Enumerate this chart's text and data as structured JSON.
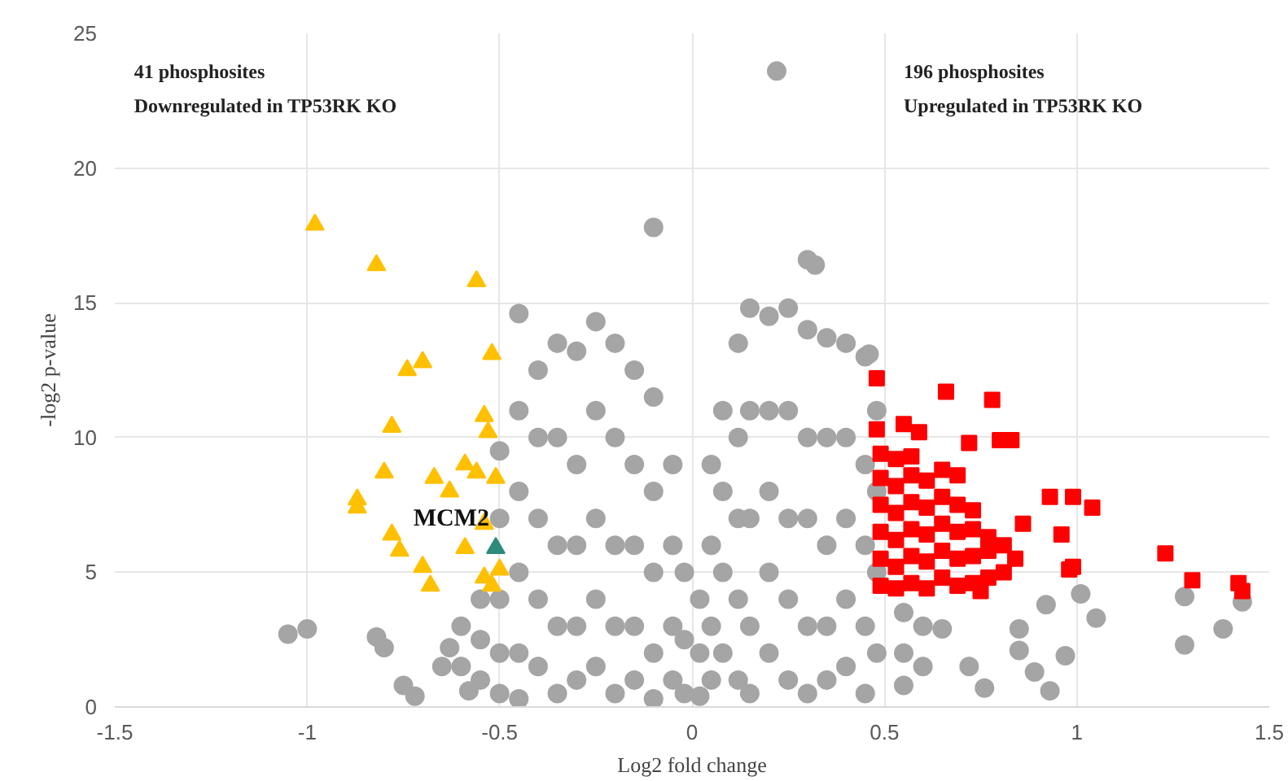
{
  "chart_data": {
    "type": "scatter",
    "xlabel": "Log2 fold change",
    "ylabel": "-log2 p-value",
    "xlim": [
      -1.5,
      1.5
    ],
    "ylim": [
      0,
      25
    ],
    "xticks": [
      -1.5,
      -1,
      -0.5,
      0,
      0.5,
      1,
      1.5
    ],
    "yticks": [
      0,
      5,
      10,
      15,
      20,
      25
    ],
    "grid": true,
    "annotations": [
      "41 phosphosites\nDownregulated  in TP53RK KO",
      "196 phosphosites\nUpregulated  in TP53RK KO",
      {
        "text": "MCM2",
        "x": -0.51,
        "y": 5.9
      }
    ],
    "series": [
      {
        "color": "#a5a5a5",
        "marker": "circle",
        "x": [
          -0.5,
          -0.5,
          -0.5,
          -0.5,
          -0.5,
          -0.45,
          -0.45,
          -0.45,
          -0.45,
          -0.45,
          -0.45,
          -0.4,
          -0.4,
          -0.4,
          -0.4,
          -0.4,
          -0.35,
          -0.35,
          -0.35,
          -0.35,
          -0.35,
          -0.3,
          -0.3,
          -0.3,
          -0.3,
          -0.3,
          -0.25,
          -0.25,
          -0.25,
          -0.25,
          -0.25,
          -0.2,
          -0.2,
          -0.2,
          -0.2,
          -0.2,
          -0.15,
          -0.15,
          -0.15,
          -0.15,
          -0.15,
          -0.1,
          -0.1,
          -0.1,
          -0.1,
          -0.1,
          -0.05,
          -0.05,
          -0.05,
          -0.05,
          -0.02,
          -0.02,
          -0.02,
          0.02,
          0.02,
          0.02,
          0.05,
          0.05,
          0.05,
          0.05,
          0.08,
          0.08,
          0.08,
          0.08,
          0.12,
          0.12,
          0.12,
          0.12,
          0.12,
          0.15,
          0.15,
          0.15,
          0.15,
          0.15,
          0.2,
          0.2,
          0.2,
          0.2,
          0.2,
          0.25,
          0.25,
          0.25,
          0.25,
          0.25,
          0.3,
          0.3,
          0.3,
          0.3,
          0.3,
          0.35,
          0.35,
          0.35,
          0.35,
          0.35,
          0.4,
          0.4,
          0.4,
          0.4,
          0.4,
          0.45,
          0.45,
          0.45,
          0.45,
          0.45,
          0.48,
          0.48,
          0.48,
          0.48,
          -0.1,
          0.22,
          0.3,
          0.32,
          -1.05,
          -1.0,
          -0.82,
          -0.8,
          -0.75,
          -0.72,
          -0.65,
          -0.63,
          -0.58,
          -0.55,
          -0.55,
          -0.55,
          -0.6,
          -0.6,
          0.46,
          0.55,
          0.55,
          0.55,
          0.6,
          0.6,
          0.65,
          0.92,
          1.05,
          1.28,
          1.38,
          1.28,
          1.43,
          0.97,
          0.89,
          0.93,
          0.76,
          0.72,
          0.85,
          0.85,
          1.01
        ],
        "values": [
          9.5,
          7,
          4,
          2,
          0.5,
          14.6,
          11,
          8,
          5,
          2,
          0.3,
          12.5,
          10,
          7,
          4,
          1.5,
          13.5,
          10,
          6,
          3,
          0.5,
          13.2,
          9,
          6,
          3,
          1,
          14.3,
          11,
          7,
          4,
          1.5,
          13.5,
          10,
          6,
          3,
          0.5,
          12.5,
          9,
          6,
          3,
          1,
          11.5,
          8,
          5,
          2,
          0.3,
          9,
          6,
          3,
          1,
          5,
          2.5,
          0.5,
          4,
          2,
          0.4,
          9,
          6,
          3,
          1,
          11,
          8,
          5,
          2,
          13.5,
          10,
          7,
          4,
          1,
          14.8,
          11,
          7,
          3,
          0.5,
          14.5,
          11,
          8,
          5,
          2,
          14.8,
          11,
          7,
          4,
          1,
          14,
          10,
          7,
          3,
          0.5,
          13.7,
          10,
          6,
          3,
          1,
          13.5,
          10,
          7,
          4,
          1.5,
          13,
          9,
          6,
          3,
          0.5,
          11,
          8,
          5,
          2,
          17.8,
          23.6,
          16.6,
          16.4,
          2.7,
          2.9,
          2.6,
          2.2,
          0.8,
          0.4,
          1.5,
          2.2,
          0.6,
          4,
          2.5,
          1,
          3,
          1.5,
          13.1,
          3.5,
          2,
          0.8,
          3,
          1.5,
          2.9,
          3.8,
          3.3,
          4.1,
          2.9,
          2.3,
          3.9,
          1.9,
          1.3,
          0.6,
          0.7,
          1.5,
          2.1,
          2.9,
          4.2
        ]
      },
      {
        "color": "#ffc000",
        "marker": "triangle",
        "x": [
          -0.98,
          -0.82,
          -0.56,
          -0.74,
          -0.7,
          -0.52,
          -0.78,
          -0.54,
          -0.53,
          -0.8,
          -0.67,
          -0.63,
          -0.59,
          -0.56,
          -0.51,
          -0.87,
          -0.87,
          -0.78,
          -0.76,
          -0.59,
          -0.7,
          -0.68,
          -0.54,
          -0.5,
          -0.52,
          -0.54
        ],
        "values": [
          17.9,
          16.4,
          15.8,
          12.5,
          12.8,
          13.1,
          10.4,
          10.8,
          10.2,
          8.7,
          8.5,
          8.0,
          9.0,
          8.7,
          8.5,
          7.7,
          7.4,
          6.4,
          5.8,
          5.9,
          5.2,
          4.5,
          4.8,
          5.1,
          4.5,
          6.8
        ]
      },
      {
        "color": "#2e8b7a",
        "marker": "triangle",
        "x": [
          -0.51
        ],
        "values": [
          5.9
        ]
      },
      {
        "color": "#ff0000",
        "marker": "square",
        "x": [
          0.48,
          0.66,
          0.78,
          0.48,
          0.55,
          0.59,
          0.72,
          0.8,
          0.83,
          0.93,
          0.99,
          1.04,
          0.96,
          0.86,
          0.98,
          0.99,
          1.23,
          1.3,
          1.42,
          1.43,
          0.75,
          0.49,
          0.49,
          0.49,
          0.49,
          0.49,
          0.49,
          0.53,
          0.53,
          0.53,
          0.53,
          0.53,
          0.53,
          0.57,
          0.57,
          0.57,
          0.57,
          0.57,
          0.57,
          0.61,
          0.61,
          0.61,
          0.61,
          0.61,
          0.65,
          0.65,
          0.65,
          0.65,
          0.65,
          0.69,
          0.69,
          0.69,
          0.69,
          0.69,
          0.73,
          0.73,
          0.73,
          0.73,
          0.77,
          0.77,
          0.77,
          0.81,
          0.81,
          0.84
        ],
        "values": [
          12.2,
          11.7,
          11.4,
          10.3,
          10.5,
          10.2,
          9.8,
          9.9,
          9.9,
          7.8,
          7.8,
          7.4,
          6.4,
          6.8,
          5.1,
          5.2,
          5.7,
          4.7,
          4.6,
          4.3,
          4.3,
          4.5,
          5.5,
          6.5,
          7.5,
          8.5,
          9.4,
          4.4,
          5.2,
          6.2,
          7.2,
          8.2,
          9.2,
          4.6,
          5.6,
          6.6,
          7.6,
          8.6,
          9.3,
          4.4,
          5.4,
          6.4,
          7.4,
          8.4,
          4.8,
          5.8,
          6.8,
          7.8,
          8.8,
          4.5,
          5.5,
          6.5,
          7.5,
          8.6,
          4.6,
          5.6,
          6.6,
          7.3,
          4.8,
          5.8,
          6.3,
          5.0,
          6.0,
          5.5
        ]
      }
    ]
  }
}
